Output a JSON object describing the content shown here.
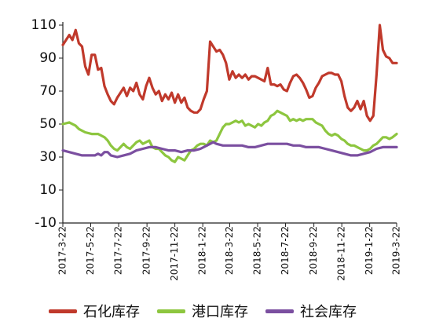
{
  "chart_data": {
    "type": "line",
    "title": "",
    "xlabel": "",
    "ylabel": "",
    "ylim": [
      -10,
      110
    ],
    "yticks": [
      -10,
      10,
      30,
      50,
      70,
      90,
      110
    ],
    "xticks": [
      "2017-3-22",
      "2017-5-22",
      "2017-7-22",
      "2017-9-22",
      "2017-11-22",
      "2018-1-22",
      "2018-3-22",
      "2018-5-22",
      "2018-7-22",
      "2018-9-22",
      "2018-11-22",
      "2019-1-22",
      "2019-3-22"
    ],
    "x_start": "2017-3-22",
    "x_end": "2019-3-22",
    "grid": false,
    "legend_position": "bottom",
    "series": [
      {
        "name": "石化库存",
        "color": "#c0392b",
        "points": [
          [
            "2017-3-22",
            98
          ],
          [
            "2017-3-29",
            101
          ],
          [
            "2017-4-5",
            104
          ],
          [
            "2017-4-12",
            101
          ],
          [
            "2017-4-19",
            107
          ],
          [
            "2017-4-26",
            99
          ],
          [
            "2017-5-3",
            97
          ],
          [
            "2017-5-10",
            85
          ],
          [
            "2017-5-17",
            80
          ],
          [
            "2017-5-24",
            92
          ],
          [
            "2017-5-31",
            92
          ],
          [
            "2017-6-7",
            83
          ],
          [
            "2017-6-14",
            84
          ],
          [
            "2017-6-21",
            73
          ],
          [
            "2017-6-28",
            68
          ],
          [
            "2017-7-5",
            64
          ],
          [
            "2017-7-12",
            62
          ],
          [
            "2017-7-19",
            66
          ],
          [
            "2017-7-26",
            69
          ],
          [
            "2017-8-2",
            72
          ],
          [
            "2017-8-9",
            67
          ],
          [
            "2017-8-16",
            72
          ],
          [
            "2017-8-23",
            70
          ],
          [
            "2017-8-30",
            75
          ],
          [
            "2017-9-6",
            68
          ],
          [
            "2017-9-13",
            65
          ],
          [
            "2017-9-20",
            73
          ],
          [
            "2017-9-27",
            78
          ],
          [
            "2017-10-4",
            72
          ],
          [
            "2017-10-11",
            68
          ],
          [
            "2017-10-18",
            70
          ],
          [
            "2017-10-25",
            64
          ],
          [
            "2017-11-1",
            68
          ],
          [
            "2017-11-8",
            65
          ],
          [
            "2017-11-15",
            69
          ],
          [
            "2017-11-22",
            63
          ],
          [
            "2017-11-29",
            68
          ],
          [
            "2017-12-6",
            63
          ],
          [
            "2017-12-13",
            66
          ],
          [
            "2017-12-20",
            60
          ],
          [
            "2017-12-27",
            58
          ],
          [
            "2018-1-3",
            57
          ],
          [
            "2018-1-10",
            57
          ],
          [
            "2018-1-17",
            59
          ],
          [
            "2018-1-24",
            65
          ],
          [
            "2018-1-31",
            70
          ],
          [
            "2018-2-7",
            100
          ],
          [
            "2018-2-14",
            97
          ],
          [
            "2018-2-21",
            94
          ],
          [
            "2018-2-28",
            95
          ],
          [
            "2018-3-7",
            92
          ],
          [
            "2018-3-14",
            87
          ],
          [
            "2018-3-21",
            77
          ],
          [
            "2018-3-28",
            82
          ],
          [
            "2018-4-4",
            78
          ],
          [
            "2018-4-11",
            80
          ],
          [
            "2018-4-18",
            78
          ],
          [
            "2018-4-25",
            80
          ],
          [
            "2018-5-2",
            77
          ],
          [
            "2018-5-9",
            79
          ],
          [
            "2018-5-16",
            79
          ],
          [
            "2018-5-23",
            78
          ],
          [
            "2018-5-30",
            77
          ],
          [
            "2018-6-6",
            76
          ],
          [
            "2018-6-13",
            84
          ],
          [
            "2018-6-20",
            74
          ],
          [
            "2018-6-27",
            74
          ],
          [
            "2018-7-4",
            73
          ],
          [
            "2018-7-11",
            74
          ],
          [
            "2018-7-18",
            71
          ],
          [
            "2018-7-25",
            70
          ],
          [
            "2018-8-1",
            75
          ],
          [
            "2018-8-8",
            79
          ],
          [
            "2018-8-15",
            80
          ],
          [
            "2018-8-22",
            78
          ],
          [
            "2018-8-29",
            75
          ],
          [
            "2018-9-5",
            71
          ],
          [
            "2018-9-12",
            66
          ],
          [
            "2018-9-19",
            67
          ],
          [
            "2018-9-26",
            72
          ],
          [
            "2018-10-3",
            75
          ],
          [
            "2018-10-10",
            79
          ],
          [
            "2018-10-17",
            80
          ],
          [
            "2018-10-24",
            81
          ],
          [
            "2018-10-31",
            81
          ],
          [
            "2018-11-7",
            80
          ],
          [
            "2018-11-14",
            80
          ],
          [
            "2018-11-21",
            76
          ],
          [
            "2018-11-28",
            67
          ],
          [
            "2018-12-5",
            60
          ],
          [
            "2018-12-12",
            58
          ],
          [
            "2018-12-19",
            60
          ],
          [
            "2018-12-26",
            64
          ],
          [
            "2019-1-2",
            59
          ],
          [
            "2019-1-9",
            64
          ],
          [
            "2019-1-16",
            55
          ],
          [
            "2019-1-23",
            52
          ],
          [
            "2019-1-30",
            55
          ],
          [
            "2019-2-6",
            80
          ],
          [
            "2019-2-13",
            110
          ],
          [
            "2019-2-20",
            95
          ],
          [
            "2019-2-27",
            91
          ],
          [
            "2019-3-6",
            90
          ],
          [
            "2019-3-13",
            87
          ],
          [
            "2019-3-22",
            87
          ]
        ]
      },
      {
        "name": "港口库存",
        "color": "#8dc63f",
        "points": [
          [
            "2017-3-22",
            50
          ],
          [
            "2017-4-5",
            51
          ],
          [
            "2017-4-19",
            49
          ],
          [
            "2017-4-26",
            47
          ],
          [
            "2017-5-10",
            45
          ],
          [
            "2017-5-24",
            44
          ],
          [
            "2017-6-7",
            44
          ],
          [
            "2017-6-21",
            42
          ],
          [
            "2017-6-28",
            40
          ],
          [
            "2017-7-5",
            37
          ],
          [
            "2017-7-12",
            35
          ],
          [
            "2017-7-19",
            34
          ],
          [
            "2017-7-26",
            36
          ],
          [
            "2017-8-2",
            38
          ],
          [
            "2017-8-9",
            36
          ],
          [
            "2017-8-16",
            35
          ],
          [
            "2017-8-23",
            37
          ],
          [
            "2017-8-30",
            39
          ],
          [
            "2017-9-6",
            40
          ],
          [
            "2017-9-13",
            38
          ],
          [
            "2017-9-20",
            39
          ],
          [
            "2017-9-27",
            40
          ],
          [
            "2017-10-4",
            36
          ],
          [
            "2017-10-11",
            35
          ],
          [
            "2017-10-18",
            35
          ],
          [
            "2017-10-25",
            33
          ],
          [
            "2017-11-1",
            31
          ],
          [
            "2017-11-8",
            30
          ],
          [
            "2017-11-15",
            28
          ],
          [
            "2017-11-22",
            27
          ],
          [
            "2017-11-29",
            30
          ],
          [
            "2017-12-6",
            29
          ],
          [
            "2017-12-13",
            28
          ],
          [
            "2017-12-20",
            31
          ],
          [
            "2017-12-27",
            34
          ],
          [
            "2018-1-3",
            35
          ],
          [
            "2018-1-10",
            37
          ],
          [
            "2018-1-17",
            38
          ],
          [
            "2018-1-24",
            38
          ],
          [
            "2018-1-31",
            37
          ],
          [
            "2018-2-7",
            40
          ],
          [
            "2018-2-14",
            39
          ],
          [
            "2018-2-21",
            40
          ],
          [
            "2018-2-28",
            44
          ],
          [
            "2018-3-7",
            48
          ],
          [
            "2018-3-14",
            50
          ],
          [
            "2018-3-21",
            50
          ],
          [
            "2018-3-28",
            51
          ],
          [
            "2018-4-4",
            52
          ],
          [
            "2018-4-11",
            51
          ],
          [
            "2018-4-18",
            52
          ],
          [
            "2018-4-25",
            49
          ],
          [
            "2018-5-2",
            50
          ],
          [
            "2018-5-9",
            49
          ],
          [
            "2018-5-16",
            48
          ],
          [
            "2018-5-23",
            50
          ],
          [
            "2018-5-30",
            49
          ],
          [
            "2018-6-6",
            51
          ],
          [
            "2018-6-13",
            52
          ],
          [
            "2018-6-20",
            55
          ],
          [
            "2018-6-27",
            56
          ],
          [
            "2018-7-4",
            58
          ],
          [
            "2018-7-11",
            57
          ],
          [
            "2018-7-18",
            56
          ],
          [
            "2018-7-25",
            55
          ],
          [
            "2018-8-1",
            52
          ],
          [
            "2018-8-8",
            53
          ],
          [
            "2018-8-15",
            52
          ],
          [
            "2018-8-22",
            53
          ],
          [
            "2018-8-29",
            52
          ],
          [
            "2018-9-5",
            53
          ],
          [
            "2018-9-12",
            53
          ],
          [
            "2018-9-19",
            53
          ],
          [
            "2018-9-26",
            51
          ],
          [
            "2018-10-3",
            50
          ],
          [
            "2018-10-10",
            49
          ],
          [
            "2018-10-17",
            46
          ],
          [
            "2018-10-24",
            44
          ],
          [
            "2018-10-31",
            43
          ],
          [
            "2018-11-7",
            44
          ],
          [
            "2018-11-14",
            43
          ],
          [
            "2018-11-21",
            41
          ],
          [
            "2018-11-28",
            40
          ],
          [
            "2018-12-5",
            38
          ],
          [
            "2018-12-12",
            37
          ],
          [
            "2018-12-19",
            37
          ],
          [
            "2018-12-26",
            36
          ],
          [
            "2019-1-2",
            35
          ],
          [
            "2019-1-9",
            34
          ],
          [
            "2019-1-16",
            34
          ],
          [
            "2019-1-23",
            35
          ],
          [
            "2019-1-30",
            37
          ],
          [
            "2019-2-6",
            38
          ],
          [
            "2019-2-13",
            40
          ],
          [
            "2019-2-20",
            42
          ],
          [
            "2019-2-27",
            42
          ],
          [
            "2019-3-6",
            41
          ],
          [
            "2019-3-13",
            42
          ],
          [
            "2019-3-22",
            44
          ]
        ]
      },
      {
        "name": "社会库存",
        "color": "#7b4fa0",
        "points": [
          [
            "2017-3-22",
            34
          ],
          [
            "2017-4-5",
            33
          ],
          [
            "2017-4-19",
            32
          ],
          [
            "2017-5-3",
            31
          ],
          [
            "2017-5-17",
            31
          ],
          [
            "2017-5-31",
            31
          ],
          [
            "2017-6-7",
            32
          ],
          [
            "2017-6-14",
            31
          ],
          [
            "2017-6-21",
            33
          ],
          [
            "2017-6-28",
            33
          ],
          [
            "2017-7-5",
            31
          ],
          [
            "2017-7-19",
            30
          ],
          [
            "2017-8-2",
            31
          ],
          [
            "2017-8-16",
            32
          ],
          [
            "2017-8-30",
            34
          ],
          [
            "2017-9-13",
            35
          ],
          [
            "2017-9-27",
            36
          ],
          [
            "2017-10-11",
            36
          ],
          [
            "2017-10-25",
            35
          ],
          [
            "2017-11-8",
            34
          ],
          [
            "2017-11-22",
            34
          ],
          [
            "2017-12-6",
            33
          ],
          [
            "2017-12-20",
            34
          ],
          [
            "2018-1-3",
            34
          ],
          [
            "2018-1-17",
            35
          ],
          [
            "2018-1-31",
            37
          ],
          [
            "2018-2-7",
            38
          ],
          [
            "2018-2-14",
            39
          ],
          [
            "2018-2-21",
            38
          ],
          [
            "2018-3-7",
            37
          ],
          [
            "2018-3-21",
            37
          ],
          [
            "2018-4-4",
            37
          ],
          [
            "2018-4-18",
            37
          ],
          [
            "2018-5-2",
            36
          ],
          [
            "2018-5-16",
            36
          ],
          [
            "2018-5-30",
            37
          ],
          [
            "2018-6-13",
            38
          ],
          [
            "2018-6-27",
            38
          ],
          [
            "2018-7-11",
            38
          ],
          [
            "2018-7-25",
            38
          ],
          [
            "2018-8-8",
            37
          ],
          [
            "2018-8-22",
            37
          ],
          [
            "2018-9-5",
            36
          ],
          [
            "2018-9-19",
            36
          ],
          [
            "2018-10-3",
            36
          ],
          [
            "2018-10-17",
            35
          ],
          [
            "2018-10-31",
            34
          ],
          [
            "2018-11-14",
            33
          ],
          [
            "2018-11-28",
            32
          ],
          [
            "2018-12-12",
            31
          ],
          [
            "2018-12-26",
            31
          ],
          [
            "2019-1-9",
            32
          ],
          [
            "2019-1-23",
            33
          ],
          [
            "2019-2-6",
            35
          ],
          [
            "2019-2-20",
            36
          ],
          [
            "2019-3-6",
            36
          ],
          [
            "2019-3-22",
            36
          ]
        ]
      }
    ]
  }
}
